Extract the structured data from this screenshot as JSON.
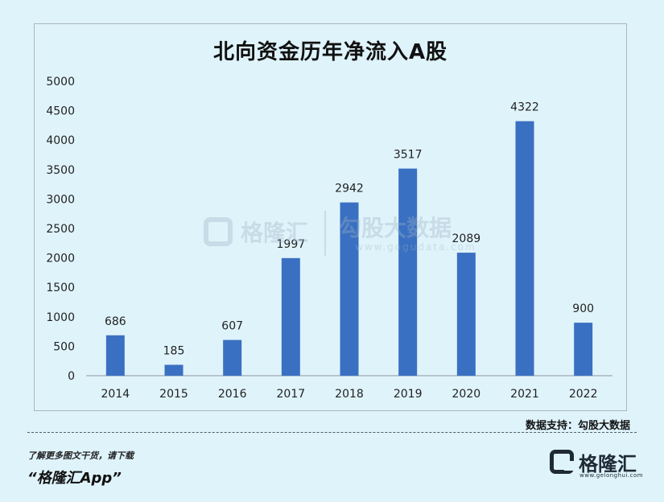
{
  "chart_data": {
    "type": "bar",
    "title": "北向资金历年净流入A股",
    "categories": [
      "2014",
      "2015",
      "2016",
      "2017",
      "2018",
      "2019",
      "2020",
      "2021",
      "2022"
    ],
    "values": [
      686,
      185,
      607,
      1997,
      2942,
      3517,
      2089,
      4322,
      900
    ],
    "xlabel": "",
    "ylabel": "",
    "ylim": [
      0,
      5000
    ],
    "yticks": [
      0,
      500,
      1000,
      1500,
      2000,
      2500,
      3000,
      3500,
      4000,
      4500,
      5000
    ],
    "grid": false,
    "legend": false,
    "bar_color": "#3a70c2"
  },
  "watermark": {
    "brand": "格隆汇",
    "source": "勾股大数据",
    "url": "www.gogudata.com"
  },
  "source_note": "数据支持：勾股大数据",
  "footer": {
    "prompt": "了解更多图文干货，请下载",
    "app": "“格隆汇App”"
  },
  "logo": {
    "name": "格隆汇",
    "url": "www.gelonghui.com",
    "icon": "g-logo-icon"
  }
}
